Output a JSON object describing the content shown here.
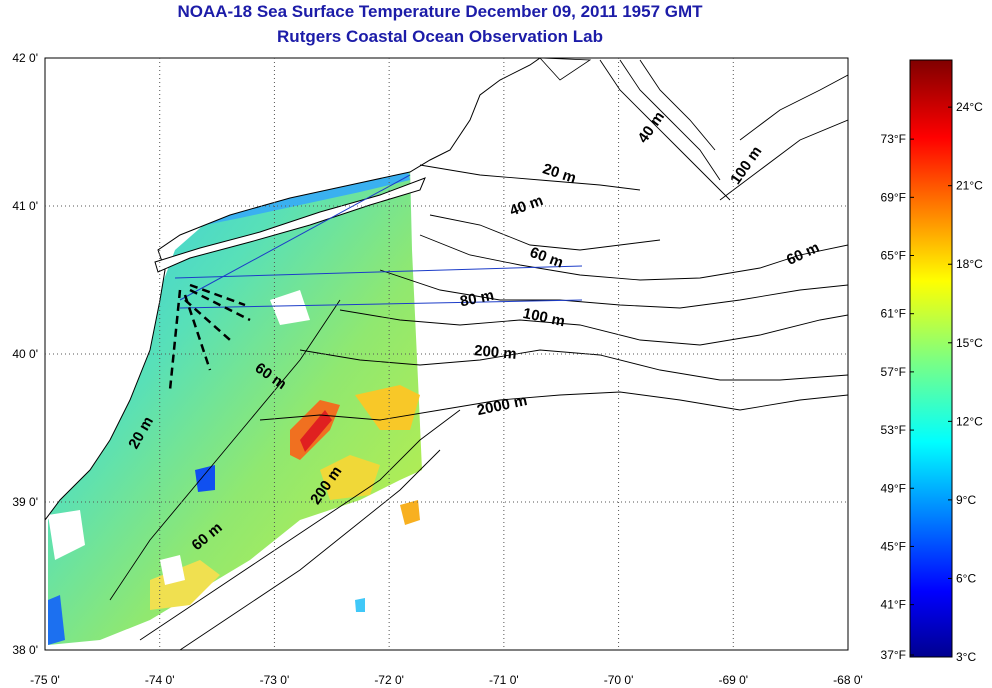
{
  "title": {
    "line1": "NOAA-18 Sea Surface Temperature December 09, 2011 1957 GMT",
    "line2": "Rutgers Coastal Ocean Observation Lab"
  },
  "map": {
    "lon_range": [
      -75,
      -68
    ],
    "lat_range": [
      38,
      42
    ],
    "lon_ticks": [
      "-75 0'",
      "-74 0'",
      "-73 0'",
      "-72 0'",
      "-71 0'",
      "-70 0'",
      "-69 0'",
      "-68 0'"
    ],
    "lat_ticks": [
      "38 0'",
      "39 0'",
      "40 0'",
      "41 0'",
      "42 0'"
    ],
    "grid": "dotted",
    "contour_labels": [
      "20 m",
      "40 m",
      "60 m",
      "80 m",
      "100 m",
      "200 m",
      "2000 m",
      "40 m",
      "100 m",
      "60 m",
      "60 m",
      "20 m",
      "200 m",
      "60 m"
    ],
    "colors": {
      "title": "#1c1ca8",
      "land": "#ffffff",
      "coast": "#000000",
      "transect": "#1c3cc8"
    }
  },
  "colorbar": {
    "celsius_labels": [
      "24°C",
      "21°C",
      "18°C",
      "15°C",
      "12°C",
      "9°C",
      "6°C",
      "3°C"
    ],
    "fahrenheit_labels": [
      "73°F",
      "69°F",
      "65°F",
      "61°F",
      "57°F",
      "53°F",
      "49°F",
      "45°F",
      "41°F",
      "37°F"
    ],
    "celsius_values": [
      24,
      21,
      18,
      15,
      12,
      9,
      6,
      3
    ],
    "fahrenheit_values": [
      73,
      69,
      65,
      61,
      57,
      53,
      49,
      45,
      41,
      37
    ],
    "range_celsius": [
      3,
      25.8
    ],
    "colormap": "jet"
  }
}
